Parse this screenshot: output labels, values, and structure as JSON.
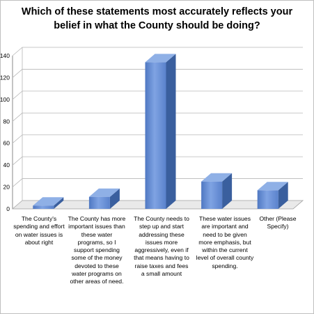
{
  "chart_data": {
    "type": "bar",
    "title_lines": [
      "Which of these statements most accurately reflects your",
      "belief in what the County should be doing?"
    ],
    "categories": [
      "The County's spending and effort on water issues is about right",
      "The County has more important issues than these water programs, so I support spending some of the money devoted to these water programs on other areas of need.",
      "The County needs to step up and start addressing these issues more aggressively, even if that means having to raise taxes and fees a small amount",
      "These water issues are important and need to be given more emphasis, but within the current level of overall county spending.",
      "Other (Please Specify)"
    ],
    "values": [
      3,
      11,
      134,
      25,
      17
    ],
    "ylim": [
      0,
      140
    ],
    "yticks": [
      "0",
      "20",
      "40",
      "60",
      "80",
      "100",
      "120",
      "140"
    ],
    "grid": true,
    "colors": {
      "bar_front": "#5b83cb",
      "bar_side": "#3a5f9e",
      "bar_top": "#8fb0e6"
    }
  }
}
